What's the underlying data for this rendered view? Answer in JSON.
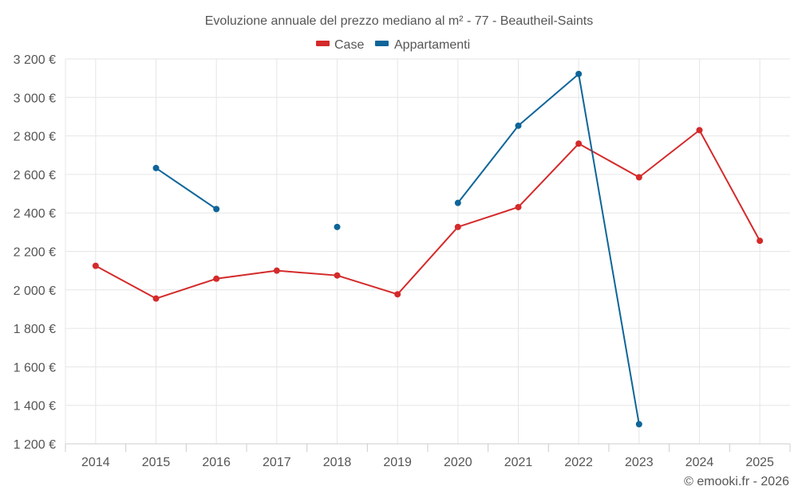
{
  "chart_data": {
    "type": "line",
    "title": "Evoluzione annuale del prezzo mediano al m² - 77 - Beautheil-Saints",
    "xlabel": "",
    "ylabel": "",
    "categories": [
      "2014",
      "2015",
      "2016",
      "2017",
      "2018",
      "2019",
      "2020",
      "2021",
      "2022",
      "2023",
      "2024",
      "2025"
    ],
    "ylim": [
      1200,
      3200
    ],
    "yticks": [
      1200,
      1400,
      1600,
      1800,
      2000,
      2200,
      2400,
      2600,
      2800,
      3000,
      3200
    ],
    "ytick_labels": [
      "1 200 €",
      "1 400 €",
      "1 600 €",
      "1 800 €",
      "2 000 €",
      "2 200 €",
      "2 400 €",
      "2 600 €",
      "2 800 €",
      "3 000 €",
      "3 200 €"
    ],
    "grid": true,
    "legend": "top-center",
    "series": [
      {
        "name": "Case",
        "color": "#d42a2a",
        "values": [
          2125,
          1955,
          2058,
          2100,
          2075,
          1977,
          2327,
          2430,
          2760,
          2585,
          2830,
          2255
        ]
      },
      {
        "name": "Appartamenti",
        "color": "#0e6599",
        "values": [
          null,
          2633,
          2420,
          null,
          2327,
          null,
          2452,
          2853,
          3122,
          1302,
          null,
          null
        ]
      }
    ]
  },
  "credit": "© emooki.fr - 2026"
}
